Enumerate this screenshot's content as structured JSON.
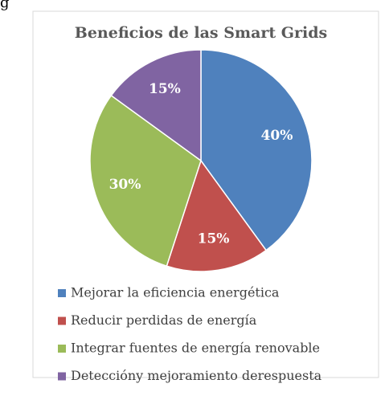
{
  "page_fragment": "g",
  "chart_data": {
    "type": "pie",
    "title": "Beneficios de las Smart Grids",
    "categories": [
      "Mejorar la eficiencia energética",
      "Reducir perdidas de energía",
      "Integrar fuentes de energía renovable",
      "Deteccióny mejoramiento derespuesta"
    ],
    "values": [
      40,
      15,
      30,
      15
    ],
    "value_labels": [
      "40%",
      "15%",
      "30%",
      "15%"
    ],
    "colors": [
      "#4f81bd",
      "#c0504d",
      "#9bbb59",
      "#8064a2"
    ],
    "legend": "bottom"
  }
}
